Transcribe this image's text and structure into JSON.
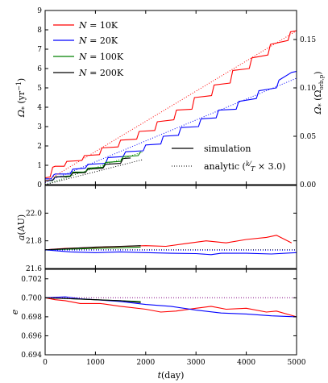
{
  "chart_data": [
    {
      "panel": "top",
      "type": "line",
      "xlim": [
        0,
        5000
      ],
      "ylim": [
        0,
        9
      ],
      "y_right_lim": [
        0.0,
        0.18
      ],
      "xticks": [
        0,
        1000,
        2000,
        3000,
        4000,
        5000
      ],
      "yticks": [
        0,
        1,
        2,
        3,
        4,
        5,
        6,
        7,
        8,
        9
      ],
      "y_right_ticks": [
        "0.00",
        "0.05",
        "0.10",
        "0.15"
      ],
      "y_right_tick_values": [
        0.0,
        0.05,
        0.1,
        0.15
      ],
      "ylabel": "Ω* (yr⁻¹)",
      "y_right_label": "Ω* (Ωorb,p)",
      "legend_series": [
        {
          "label": "N = 10K",
          "color": "#ff0000"
        },
        {
          "label": "N = 20K",
          "color": "#0000ff"
        },
        {
          "label": "N = 100K",
          "color": "#008000"
        },
        {
          "label": "N = 200K",
          "color": "#000000"
        }
      ],
      "legend_styles": [
        {
          "label": "simulation",
          "style": "solid"
        },
        {
          "label": "analytic (k/T × 3.0)",
          "style": "dotted"
        }
      ],
      "series": [
        {
          "color": "#ff0000",
          "style": "solid",
          "x": [
            0,
            100,
            150,
            200,
            380,
            430,
            730,
            780,
            1080,
            1130,
            1450,
            1500,
            1820,
            1870,
            2180,
            2230,
            2560,
            2610,
            2920,
            2970,
            3310,
            3360,
            3680,
            3730,
            4060,
            4110,
            4430,
            4480,
            4830,
            4880,
            5000
          ],
          "y": [
            0.35,
            0.4,
            0.9,
            0.95,
            0.95,
            1.2,
            1.25,
            1.5,
            1.55,
            1.9,
            1.95,
            2.3,
            2.35,
            2.75,
            2.8,
            3.25,
            3.35,
            3.85,
            3.9,
            4.5,
            4.6,
            5.15,
            5.25,
            5.9,
            6.0,
            6.55,
            6.7,
            7.25,
            7.45,
            7.9,
            7.95
          ]
        },
        {
          "color": "#0000ff",
          "style": "solid",
          "x": [
            0,
            120,
            170,
            200,
            500,
            550,
            800,
            850,
            1200,
            1250,
            1550,
            1600,
            1950,
            2000,
            2300,
            2350,
            2650,
            2700,
            3050,
            3100,
            3400,
            3450,
            3800,
            3850,
            4200,
            4250,
            4600,
            4650,
            4900,
            5000
          ],
          "y": [
            0.3,
            0.3,
            0.5,
            0.55,
            0.55,
            0.8,
            0.85,
            1.05,
            1.1,
            1.4,
            1.45,
            1.7,
            1.75,
            2.05,
            2.1,
            2.5,
            2.55,
            2.95,
            3.0,
            3.4,
            3.45,
            3.85,
            3.9,
            4.3,
            4.45,
            4.85,
            5.0,
            5.4,
            5.8,
            5.85
          ]
        },
        {
          "color": "#008000",
          "style": "solid",
          "x": [
            0,
            150,
            200,
            500,
            550,
            800,
            850,
            1150,
            1200,
            1500,
            1550,
            1850,
            1900
          ],
          "y": [
            0.2,
            0.22,
            0.4,
            0.45,
            0.65,
            0.65,
            0.85,
            0.9,
            1.15,
            1.2,
            1.45,
            1.5,
            1.7
          ]
        },
        {
          "color": "#000000",
          "style": "solid",
          "x": [
            0,
            150,
            200,
            500,
            550,
            800,
            850,
            1150,
            1200,
            1500,
            1550,
            1700
          ],
          "y": [
            0.2,
            0.22,
            0.4,
            0.42,
            0.6,
            0.62,
            0.8,
            0.85,
            1.05,
            1.1,
            1.35,
            1.38
          ]
        },
        {
          "color": "#ff0000",
          "style": "dotted",
          "x": [
            0,
            5000
          ],
          "y": [
            0.15,
            7.95
          ]
        },
        {
          "color": "#0000ff",
          "style": "dotted",
          "x": [
            0,
            5000
          ],
          "y": [
            0.1,
            5.5
          ]
        },
        {
          "color": "#008000",
          "style": "dotted",
          "x": [
            0,
            1950
          ],
          "y": [
            0.0,
            1.7
          ]
        },
        {
          "color": "#000000",
          "style": "dotted",
          "x": [
            0,
            1950
          ],
          "y": [
            0.0,
            1.3
          ]
        }
      ]
    },
    {
      "panel": "middle",
      "type": "line",
      "xlim": [
        0,
        5000
      ],
      "ylim": [
        21.6,
        22.2
      ],
      "yticks": [
        "21.6",
        "21.8",
        "22.0"
      ],
      "ytick_values": [
        21.6,
        21.8,
        22.0
      ],
      "ylabel": "a(AU)",
      "series": [
        {
          "color": "#ff0000",
          "style": "solid",
          "x": [
            0,
            400,
            800,
            1200,
            1600,
            2000,
            2400,
            2800,
            3200,
            3600,
            4000,
            4400,
            4600,
            4900
          ],
          "y": [
            21.735,
            21.745,
            21.75,
            21.755,
            21.76,
            21.765,
            21.76,
            21.78,
            21.8,
            21.785,
            21.81,
            21.825,
            21.84,
            21.785
          ]
        },
        {
          "color": "#0000ff",
          "style": "solid",
          "x": [
            0,
            500,
            1000,
            1500,
            2000,
            2500,
            3000,
            3300,
            3500,
            4000,
            4500,
            5000
          ],
          "y": [
            21.735,
            21.72,
            21.715,
            21.72,
            21.715,
            21.71,
            21.708,
            21.7,
            21.71,
            21.71,
            21.705,
            21.715
          ]
        },
        {
          "color": "#008000",
          "style": "solid",
          "x": [
            0,
            500,
            1000,
            1500,
            1900
          ],
          "y": [
            21.735,
            21.74,
            21.745,
            21.75,
            21.755
          ]
        },
        {
          "color": "#000000",
          "style": "solid",
          "x": [
            0,
            500,
            1000,
            1500,
            1900
          ],
          "y": [
            21.735,
            21.745,
            21.755,
            21.76,
            21.765
          ]
        },
        {
          "color": "#000000",
          "style": "dotted",
          "x": [
            0,
            5000
          ],
          "y": [
            21.735,
            21.735
          ]
        },
        {
          "color": "#0000ff",
          "style": "dotted",
          "x": [
            0,
            5000
          ],
          "y": [
            21.733,
            21.733
          ]
        }
      ]
    },
    {
      "panel": "bottom",
      "type": "line",
      "xlim": [
        0,
        5000
      ],
      "ylim": [
        0.694,
        0.703
      ],
      "xticks": [
        0,
        1000,
        2000,
        3000,
        4000,
        5000
      ],
      "yticks": [
        "0.694",
        "0.696",
        "0.698",
        "0.700",
        "0.702"
      ],
      "ytick_values": [
        0.694,
        0.696,
        0.698,
        0.7,
        0.702
      ],
      "xlabel": "t(day)",
      "ylabel": "e",
      "series": [
        {
          "color": "#ff0000",
          "style": "solid",
          "x": [
            0,
            200,
            400,
            700,
            1100,
            1500,
            2000,
            2300,
            2600,
            3000,
            3300,
            3600,
            4000,
            4400,
            4600,
            5000
          ],
          "y": [
            0.7,
            0.6998,
            0.6997,
            0.6994,
            0.6994,
            0.6991,
            0.6988,
            0.6985,
            0.6986,
            0.6989,
            0.6991,
            0.6988,
            0.6989,
            0.6985,
            0.6986,
            0.698
          ]
        },
        {
          "color": "#0000ff",
          "style": "solid",
          "x": [
            0,
            400,
            700,
            1000,
            1500,
            2000,
            2500,
            3000,
            3500,
            4000,
            4500,
            5000
          ],
          "y": [
            0.7,
            0.7001,
            0.6999,
            0.6998,
            0.6996,
            0.6993,
            0.6991,
            0.6987,
            0.6984,
            0.6983,
            0.6981,
            0.698
          ]
        },
        {
          "color": "#008000",
          "style": "solid",
          "x": [
            0,
            500,
            1000,
            1500,
            1900
          ],
          "y": [
            0.7,
            0.6999,
            0.6998,
            0.6997,
            0.6996
          ]
        },
        {
          "color": "#000000",
          "style": "solid",
          "x": [
            0,
            500,
            1000,
            1500,
            1900
          ],
          "y": [
            0.7,
            0.6999,
            0.6998,
            0.6997,
            0.6995
          ]
        },
        {
          "color": "#800080",
          "style": "dotted",
          "x": [
            0,
            5000
          ],
          "y": [
            0.7,
            0.7
          ]
        }
      ]
    }
  ],
  "legend_text": {
    "n1_eq": "N = ",
    "n1_val": "10K",
    "n2_eq": "N = ",
    "n2_val": "20K",
    "n3_eq": "N = ",
    "n3_val": "100K",
    "n4_eq": "N = ",
    "n4_val": "200K",
    "sim": "simulation",
    "analytic_pre": "analytic (",
    "analytic_k": "k",
    "analytic_T": "T",
    "analytic_post": " × 3.0)"
  },
  "labels": {
    "omega_sym": "Ω",
    "omega_sub": "*",
    "omega_unit": " (yr",
    "omega_exp": "−1",
    "omega_close": ")",
    "right_sym": "Ω",
    "right_sub": "*",
    "right_open": " (Ω",
    "right_orb": "orb,p",
    "right_close": ")",
    "a_label": "a",
    "a_unit": "(AU)",
    "e_label": "e",
    "t_label": "t",
    "t_unit": "(day)"
  }
}
